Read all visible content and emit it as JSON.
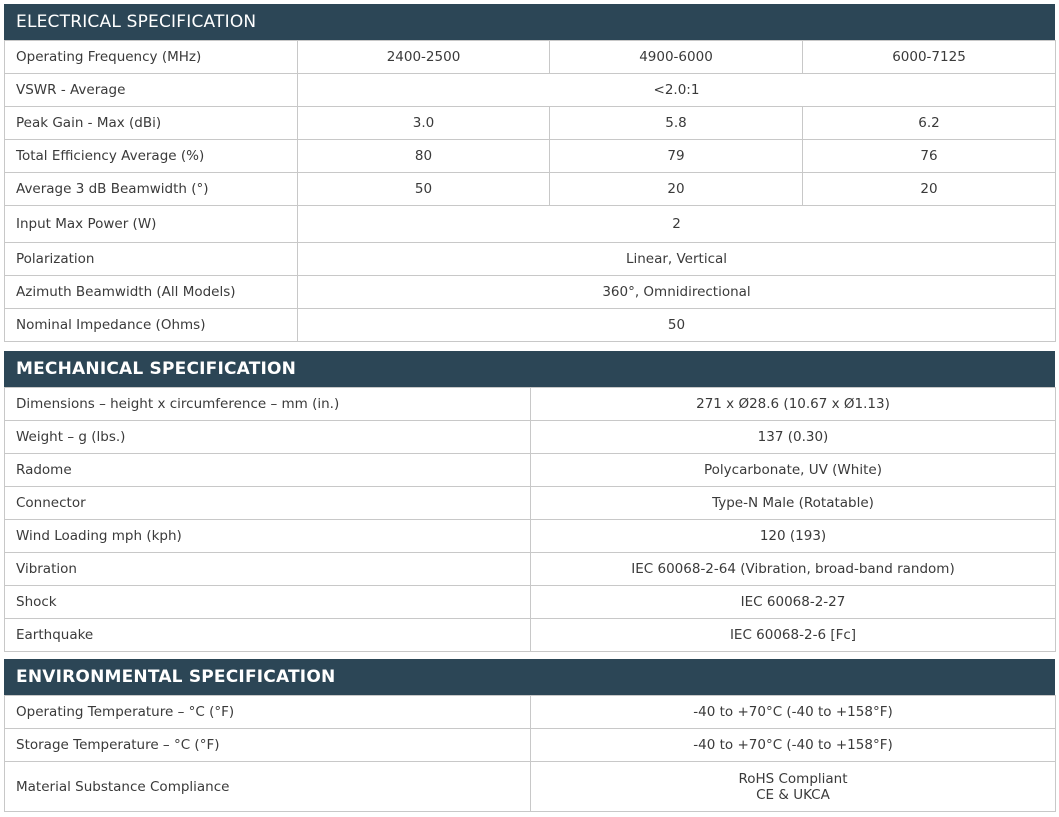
{
  "electrical": {
    "title": "ELECTRICAL SPECIFICATION",
    "rows": [
      {
        "label": "Operating Frequency (MHz)",
        "values": [
          "2400-2500",
          "4900-6000",
          "6000-7125"
        ]
      },
      {
        "label": "VSWR - Average",
        "values": [
          "<2.0:1"
        ]
      },
      {
        "label": "Peak Gain - Max (dBi)",
        "values": [
          "3.0",
          "5.8",
          "6.2"
        ]
      },
      {
        "label": "Total Efficiency Average (%)",
        "values": [
          "80",
          "79",
          "76"
        ]
      },
      {
        "label": "Average 3 dB Beamwidth (°)",
        "values": [
          "50",
          "20",
          "20"
        ]
      },
      {
        "label": "Input Max Power (W)",
        "values": [
          "2"
        ]
      },
      {
        "label": "Polarization",
        "values": [
          "Linear, Vertical"
        ]
      },
      {
        "label": "Azimuth Beamwidth (All Models)",
        "values": [
          "360°, Omnidirectional"
        ]
      },
      {
        "label": "Nominal Impedance (Ohms)",
        "values": [
          "50"
        ]
      }
    ]
  },
  "mechanical": {
    "title": "MECHANICAL SPECIFICATION",
    "rows": [
      {
        "label": "Dimensions – height x circumference – mm (in.)",
        "value": "271 x Ø28.6 (10.67 x Ø1.13)"
      },
      {
        "label": "Weight – g (lbs.)",
        "value": "137 (0.30)"
      },
      {
        "label": "Radome",
        "value": "Polycarbonate, UV (White)"
      },
      {
        "label": "Connector",
        "value": "Type-N Male (Rotatable)"
      },
      {
        "label": "Wind Loading mph (kph)",
        "value": "120 (193)"
      },
      {
        "label": "Vibration",
        "value": "IEC 60068-2-64 (Vibration, broad-band random)"
      },
      {
        "label": "Shock",
        "value": "IEC 60068-2-27"
      },
      {
        "label": "Earthquake",
        "value": "IEC 60068-2-6 [Fc]"
      }
    ]
  },
  "environmental": {
    "title": "ENVIRONMENTAL SPECIFICATION",
    "rows": [
      {
        "label": "Operating Temperature – °C (°F)",
        "value": "-40 to +70°C (-40 to +158°F)"
      },
      {
        "label": "Storage Temperature – °C (°F)",
        "value": "-40 to +70°C (-40 to +158°F)"
      },
      {
        "label": "Material Substance Compliance",
        "value": "RoHS Compliant",
        "value2": "CE & UKCA"
      }
    ]
  }
}
